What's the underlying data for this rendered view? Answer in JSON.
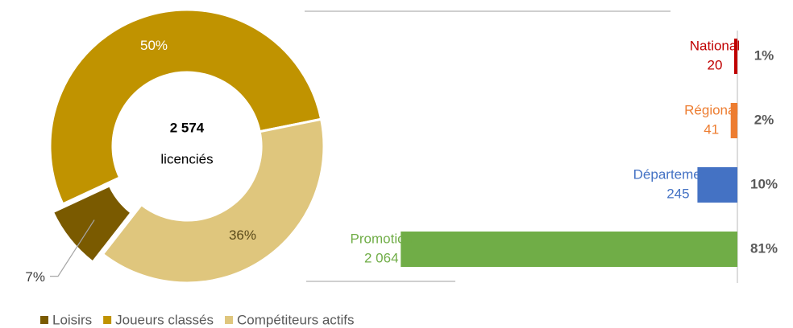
{
  "chart_data": [
    {
      "type": "donut",
      "total": 2574,
      "total_label": "2 574",
      "center_text": "licenciés",
      "categories": [
        "Loisirs",
        "Joueurs classés",
        "Compétiteurs actifs"
      ],
      "values": [
        7,
        50,
        36
      ],
      "value_labels": [
        "7%",
        "50%",
        "36%"
      ],
      "colors": [
        "#7a5a00",
        "#c09300",
        "#dfc67d"
      ],
      "legend": "bottom"
    },
    {
      "type": "hbar",
      "categories": [
        "National",
        "Régional",
        "Départemental",
        "Promotion"
      ],
      "values": [
        20,
        41,
        245,
        2064
      ],
      "value_labels": [
        "20",
        "41",
        "245",
        "2 064"
      ],
      "share_values": [
        1,
        2,
        10,
        81
      ],
      "share_labels": [
        "1%",
        "2%",
        "10%",
        "81%"
      ],
      "colors": [
        "#c00000",
        "#ed7d31",
        "#4472c4",
        "#70ad47"
      ],
      "xlim": [
        0,
        2100
      ]
    }
  ]
}
